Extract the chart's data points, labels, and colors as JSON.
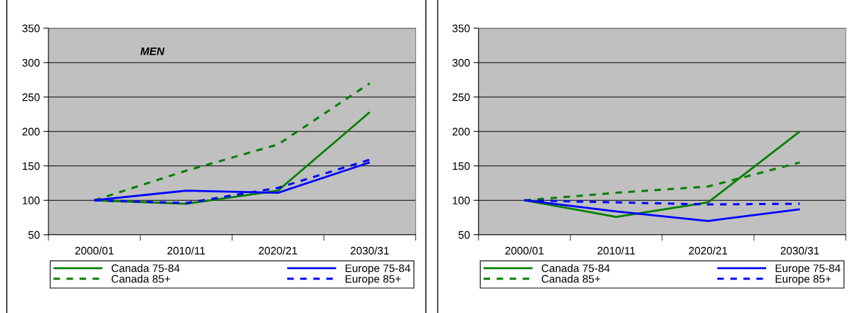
{
  "chart_data": [
    {
      "type": "line",
      "annotations": [
        "MEN"
      ],
      "categories": [
        "2000/01",
        "2010/11",
        "2020/21",
        "2030/31"
      ],
      "ylim": [
        50,
        350
      ],
      "yticks": [
        50,
        100,
        150,
        200,
        250,
        300,
        350
      ],
      "grid": "y",
      "legend": "bottom",
      "marker": "none",
      "series": [
        {
          "name": "Canada 75-84",
          "color": "#008000",
          "line_style": "solid",
          "values": [
            100,
            95,
            114,
            228
          ]
        },
        {
          "name": "Canada 85+",
          "color": "#008000",
          "line_style": "dashed",
          "values": [
            100,
            143,
            181,
            270
          ]
        },
        {
          "name": "Europe 75-84",
          "color": "#0000ff",
          "line_style": "solid",
          "values": [
            100,
            114,
            111,
            155
          ]
        },
        {
          "name": "Europe 85+",
          "color": "#0000ff",
          "line_style": "dashed",
          "values": [
            100,
            96,
            118,
            159
          ]
        }
      ]
    },
    {
      "type": "line",
      "categories": [
        "2000/01",
        "2010/11",
        "2020/21",
        "2030/31"
      ],
      "ylim": [
        50,
        350
      ],
      "yticks": [
        50,
        100,
        150,
        200,
        250,
        300,
        350
      ],
      "grid": "y",
      "legend": "bottom",
      "marker": "none",
      "series": [
        {
          "name": "Canada 75-84",
          "color": "#008000",
          "line_style": "solid",
          "values": [
            100,
            76,
            97,
            200
          ]
        },
        {
          "name": "Canada 85+",
          "color": "#008000",
          "line_style": "dashed",
          "values": [
            100,
            111,
            120,
            155
          ]
        },
        {
          "name": "Europe 75-84",
          "color": "#0000ff",
          "line_style": "solid",
          "values": [
            100,
            84,
            70,
            87
          ]
        },
        {
          "name": "Europe 85+",
          "color": "#0000ff",
          "line_style": "dashed",
          "values": [
            100,
            97,
            94,
            95
          ]
        }
      ]
    }
  ]
}
